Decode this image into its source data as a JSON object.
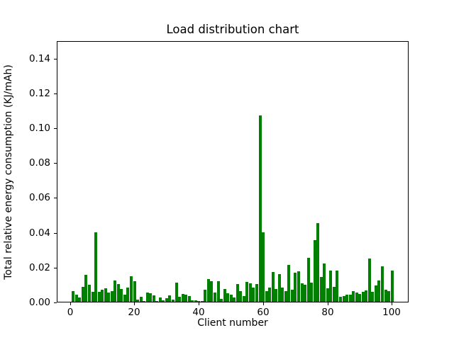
{
  "chart_data": {
    "type": "bar",
    "title": "Load distribution chart",
    "xlabel": "Client number",
    "ylabel": "Total relative energy consumption (KJ/mAh)",
    "bar_color": "#008000",
    "background_color": "#ffffff",
    "grid": false,
    "legend": null,
    "xlim": [
      -4.1,
      105.2
    ],
    "ylim": [
      0,
      0.15
    ],
    "bar_width_units": 0.8,
    "xticks": [
      0,
      20,
      40,
      60,
      80,
      100
    ],
    "ytick_labels": [
      "0.00",
      "0.02",
      "0.04",
      "0.06",
      "0.08",
      "0.10",
      "0.12",
      "0.14"
    ],
    "ytick_values": [
      0.0,
      0.02,
      0.04,
      0.06,
      0.08,
      0.1,
      0.12,
      0.14
    ],
    "x": [
      1,
      2,
      3,
      4,
      5,
      6,
      7,
      8,
      9,
      10,
      11,
      12,
      13,
      14,
      15,
      16,
      17,
      18,
      19,
      20,
      21,
      22,
      23,
      24,
      25,
      26,
      27,
      28,
      29,
      30,
      31,
      32,
      33,
      34,
      35,
      36,
      37,
      38,
      39,
      40,
      41,
      42,
      43,
      44,
      45,
      46,
      47,
      48,
      49,
      50,
      51,
      52,
      53,
      54,
      55,
      56,
      57,
      58,
      59,
      60,
      61,
      62,
      63,
      64,
      65,
      66,
      67,
      68,
      69,
      70,
      71,
      72,
      73,
      74,
      75,
      76,
      77,
      78,
      79,
      80,
      81,
      82,
      83,
      84,
      85,
      86,
      87,
      88,
      89,
      90,
      91,
      92,
      93,
      94,
      95,
      96,
      97,
      98,
      99,
      100
    ],
    "values": [
      0.006,
      0.0039,
      0.0026,
      0.0086,
      0.0155,
      0.0096,
      0.0058,
      0.04,
      0.0056,
      0.0069,
      0.0076,
      0.0052,
      0.0062,
      0.0123,
      0.01,
      0.0072,
      0.004,
      0.0083,
      0.0147,
      0.0119,
      0.0011,
      0.003,
      0.0006,
      0.0052,
      0.0049,
      0.0035,
      0.0006,
      0.0024,
      0.001,
      0.0019,
      0.0035,
      0.0012,
      0.011,
      0.003,
      0.0045,
      0.004,
      0.0031,
      0.0008,
      0.0008,
      0.0004,
      0.0005,
      0.0069,
      0.013,
      0.0117,
      0.0053,
      0.0118,
      0.0018,
      0.0072,
      0.0049,
      0.0039,
      0.0026,
      0.0102,
      0.0062,
      0.0031,
      0.0113,
      0.0105,
      0.008,
      0.0103,
      0.107,
      0.04,
      0.006,
      0.008,
      0.0172,
      0.0073,
      0.0158,
      0.008,
      0.0062,
      0.0212,
      0.0069,
      0.0167,
      0.0174,
      0.0106,
      0.0099,
      0.0252,
      0.011,
      0.0354,
      0.045,
      0.0144,
      0.0219,
      0.0076,
      0.0178,
      0.0087,
      0.018,
      0.0027,
      0.0034,
      0.0041,
      0.0039,
      0.0061,
      0.0053,
      0.0045,
      0.0056,
      0.0064,
      0.0248,
      0.0056,
      0.0094,
      0.0123,
      0.0202,
      0.0069,
      0.0062,
      0.0178
    ]
  }
}
